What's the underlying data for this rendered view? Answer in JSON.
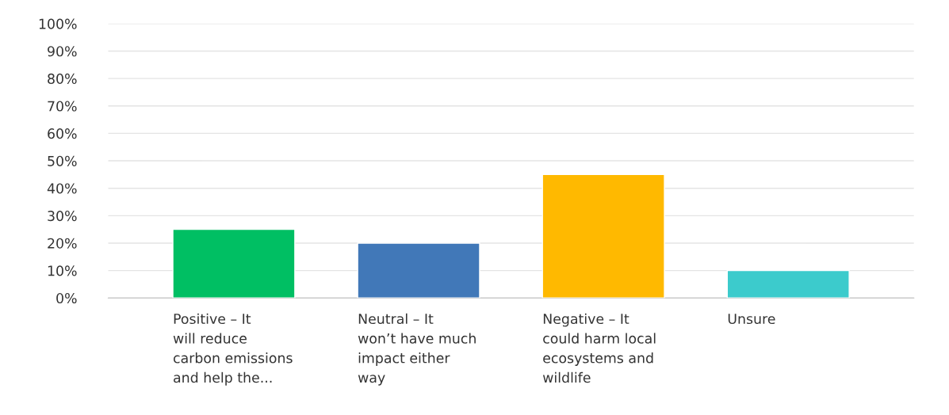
{
  "chart_data": {
    "type": "bar",
    "categories": [
      "Positive – It\nwill reduce\ncarbon emissions\nand help the...",
      "Neutral – It\nwon’t have much\nimpact either\nway",
      "Negative – It\ncould harm local\necosystems and\nwildlife",
      "Unsure"
    ],
    "values": [
      25,
      20,
      45,
      10
    ],
    "colors": [
      "#00bf63",
      "#4178b8",
      "#ffb900",
      "#3ccbcc"
    ],
    "ylim": [
      0,
      100
    ],
    "yticks": [
      {
        "value": 0,
        "label": "0%"
      },
      {
        "value": 10,
        "label": "10%"
      },
      {
        "value": 20,
        "label": "20%"
      },
      {
        "value": 30,
        "label": "30%"
      },
      {
        "value": 40,
        "label": "40%"
      },
      {
        "value": 50,
        "label": "50%"
      },
      {
        "value": 60,
        "label": "60%"
      },
      {
        "value": 70,
        "label": "70%"
      },
      {
        "value": 80,
        "label": "80%"
      },
      {
        "value": 90,
        "label": "90%"
      },
      {
        "value": 100,
        "label": "100%"
      }
    ],
    "grid": "y"
  }
}
